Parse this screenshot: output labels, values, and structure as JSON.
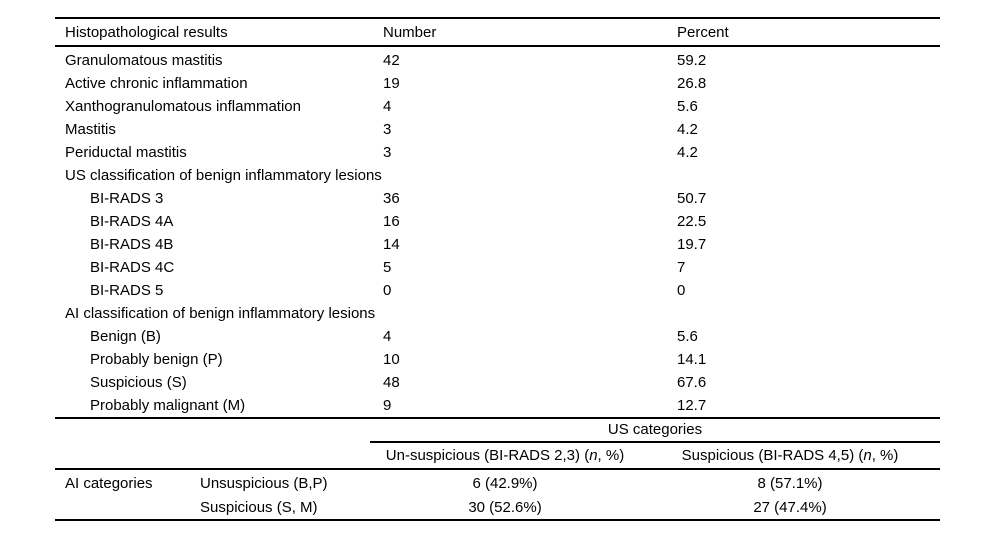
{
  "page": {
    "background": "#ffffff",
    "text_color": "#000000",
    "rule_color": "#000000"
  },
  "main_table": {
    "headers": {
      "results": "Histopathological results",
      "number": "Number",
      "percent": "Percent"
    },
    "rows": [
      {
        "label": "Granulomatous mastitis",
        "number": "42",
        "percent": "59.2"
      },
      {
        "label": "Active chronic inflammation",
        "number": "19",
        "percent": "26.8"
      },
      {
        "label": "Xanthogranulomatous inflammation",
        "number": "4",
        "percent": "5.6"
      },
      {
        "label": "Mastitis",
        "number": "3",
        "percent": "4.2"
      },
      {
        "label": "Periductal mastitis",
        "number": "3",
        "percent": "4.2"
      },
      {
        "label": "US classification of benign inflammatory lesions",
        "number": "",
        "percent": ""
      },
      {
        "label": "BI-RADS 3",
        "number": "36",
        "percent": "50.7"
      },
      {
        "label": "BI-RADS 4A",
        "number": "16",
        "percent": "22.5"
      },
      {
        "label": "BI-RADS 4B",
        "number": "14",
        "percent": "19.7"
      },
      {
        "label": "BI-RADS 4C",
        "number": "5",
        "percent": "7"
      },
      {
        "label": "BI-RADS 5",
        "number": "0",
        "percent": "0"
      },
      {
        "label": "AI classification of benign inflammatory lesions",
        "number": "",
        "percent": ""
      },
      {
        "label": "Benign (B)",
        "number": "4",
        "percent": "5.6"
      },
      {
        "label": "Probably benign (P)",
        "number": "10",
        "percent": "14.1"
      },
      {
        "label": "Suspicious (S)",
        "number": "48",
        "percent": "67.6"
      },
      {
        "label": "Probably malignant (M)",
        "number": "9",
        "percent": "12.7"
      }
    ]
  },
  "crosstab": {
    "span_header": "US categories",
    "col_headers": [
      {
        "pre": "Un-suspicious (BI-RADS 2,3) (",
        "italic": "n",
        "post": ", %)"
      },
      {
        "pre": "Suspicious (BI-RADS 4,5) (",
        "italic": "n",
        "post": ", %)"
      }
    ],
    "row_group_label": "AI categories",
    "rows": [
      {
        "label": "Unsuspicious (B,P)",
        "unsuspicious": "6 (42.9%)",
        "suspicious": "8 (57.1%)"
      },
      {
        "label": "Suspicious (S, M)",
        "unsuspicious": "30 (52.6%)",
        "suspicious": "27 (47.4%)"
      }
    ]
  }
}
